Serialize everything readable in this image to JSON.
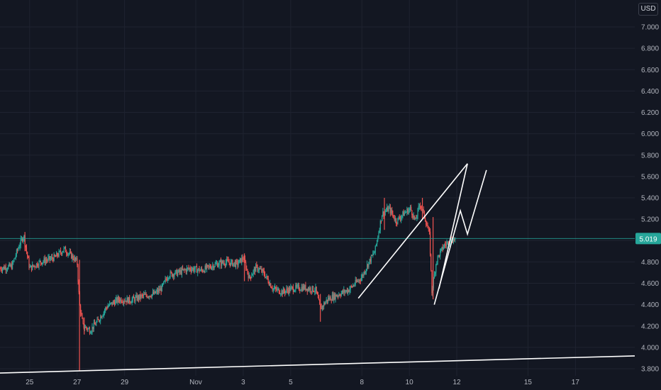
{
  "currency": "USD",
  "colors": {
    "background": "#131722",
    "grid": "#1f2330",
    "axis_text": "#b2b5be",
    "up": "#26a69a",
    "down": "#ef5350",
    "price_line": "#26a69a",
    "price_label_bg": "#26a69a",
    "drawing": "#ffffff"
  },
  "chart_data": {
    "type": "candlestick",
    "y_ticks": [
      "7.000",
      "6.800",
      "6.600",
      "6.400",
      "6.200",
      "6.000",
      "5.800",
      "5.600",
      "5.400",
      "5.200",
      "5.000",
      "4.800",
      "4.600",
      "4.400",
      "4.200",
      "4.000",
      "3.800"
    ],
    "ylim": [
      3.78,
      7.13
    ],
    "x_ticks": [
      {
        "label": "25",
        "x": 24.75
      },
      {
        "label": "27",
        "x": 26.75
      },
      {
        "label": "29",
        "x": 28.75
      },
      {
        "label": "Nov",
        "x": 31.75
      },
      {
        "label": "3",
        "x": 33.75
      },
      {
        "label": "5",
        "x": 35.75
      },
      {
        "label": "8",
        "x": 38.75
      },
      {
        "label": "10",
        "x": 40.75
      },
      {
        "label": "12",
        "x": 42.75
      },
      {
        "label": "15",
        "x": 45.75
      },
      {
        "label": "17",
        "x": 47.75
      }
    ],
    "xlim": [
      23.5,
      50.25
    ],
    "current_price": 5.019,
    "current_price_label": "5.019",
    "price_path": [
      [
        23.5,
        4.74
      ],
      [
        24.0,
        4.76
      ],
      [
        24.3,
        4.95
      ],
      [
        24.5,
        5.05
      ],
      [
        24.6,
        4.92
      ],
      [
        24.75,
        4.74
      ],
      [
        25.2,
        4.8
      ],
      [
        25.8,
        4.84
      ],
      [
        26.2,
        4.92
      ],
      [
        26.5,
        4.86
      ],
      [
        26.75,
        4.8
      ],
      [
        26.85,
        4.4
      ],
      [
        27.0,
        4.2
      ],
      [
        27.3,
        4.16
      ],
      [
        27.6,
        4.24
      ],
      [
        28.0,
        4.38
      ],
      [
        28.5,
        4.45
      ],
      [
        29.0,
        4.44
      ],
      [
        29.5,
        4.48
      ],
      [
        30.0,
        4.5
      ],
      [
        30.3,
        4.55
      ],
      [
        30.6,
        4.68
      ],
      [
        31.0,
        4.7
      ],
      [
        31.5,
        4.74
      ],
      [
        32.0,
        4.72
      ],
      [
        32.5,
        4.77
      ],
      [
        33.0,
        4.8
      ],
      [
        33.5,
        4.78
      ],
      [
        33.75,
        4.84
      ],
      [
        34.0,
        4.65
      ],
      [
        34.3,
        4.75
      ],
      [
        34.6,
        4.7
      ],
      [
        35.0,
        4.55
      ],
      [
        35.4,
        4.52
      ],
      [
        35.8,
        4.55
      ],
      [
        36.3,
        4.56
      ],
      [
        36.8,
        4.54
      ],
      [
        37.0,
        4.36
      ],
      [
        37.3,
        4.45
      ],
      [
        37.8,
        4.5
      ],
      [
        38.2,
        4.54
      ],
      [
        38.75,
        4.66
      ],
      [
        39.0,
        4.78
      ],
      [
        39.3,
        4.9
      ],
      [
        39.6,
        5.25
      ],
      [
        39.9,
        5.3
      ],
      [
        40.2,
        5.18
      ],
      [
        40.5,
        5.25
      ],
      [
        40.8,
        5.3
      ],
      [
        41.0,
        5.18
      ],
      [
        41.2,
        5.35
      ],
      [
        41.4,
        5.22
      ],
      [
        41.6,
        5.05
      ],
      [
        41.7,
        4.52
      ],
      [
        41.9,
        4.82
      ],
      [
        42.2,
        4.95
      ],
      [
        42.5,
        5.0
      ],
      [
        42.7,
        5.02
      ]
    ],
    "spikes": [
      {
        "x": 24.55,
        "high": 5.08,
        "low": 4.9
      },
      {
        "x": 26.85,
        "high": 4.82,
        "low": 3.78
      },
      {
        "x": 27.05,
        "high": 4.28,
        "low": 4.12
      },
      {
        "x": 33.8,
        "high": 4.88,
        "low": 4.62
      },
      {
        "x": 37.0,
        "high": 4.5,
        "low": 4.24
      },
      {
        "x": 39.7,
        "high": 5.4,
        "low": 5.1
      },
      {
        "x": 41.3,
        "high": 5.4,
        "low": 5.2
      },
      {
        "x": 41.75,
        "high": 5.22,
        "low": 4.45
      }
    ],
    "drawings": [
      {
        "name": "support-trendline",
        "points": [
          [
            23.5,
            3.76
          ],
          [
            50.25,
            3.92
          ]
        ]
      },
      {
        "name": "rising-channel-line",
        "points": [
          [
            38.6,
            4.46
          ],
          [
            43.2,
            5.72
          ]
        ]
      },
      {
        "name": "projection-path-outer",
        "points": [
          [
            41.8,
            4.4
          ],
          [
            42.9,
            5.28
          ],
          [
            43.2,
            5.06
          ],
          [
            44.0,
            5.66
          ]
        ]
      },
      {
        "name": "projection-path-inner",
        "points": [
          [
            42.0,
            4.55
          ],
          [
            43.2,
            5.72
          ]
        ]
      }
    ]
  }
}
